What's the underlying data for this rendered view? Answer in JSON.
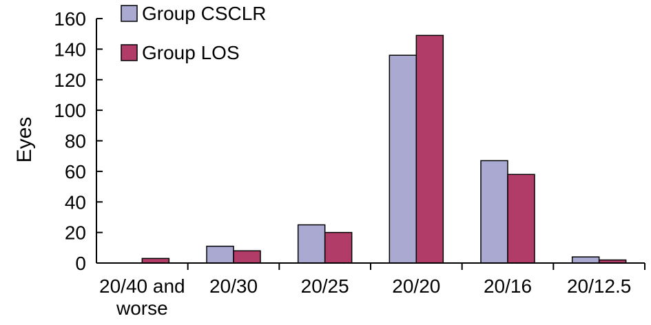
{
  "chart_data": {
    "type": "bar",
    "title": "",
    "xlabel": "",
    "ylabel": "Eyes",
    "ylim": [
      0,
      160
    ],
    "yticks": [
      0,
      20,
      40,
      60,
      80,
      100,
      120,
      140,
      160
    ],
    "grid": false,
    "legend_position": "top-left",
    "categories": [
      [
        "20/40 and",
        "worse"
      ],
      [
        "20/30"
      ],
      [
        "20/25"
      ],
      [
        "20/20"
      ],
      [
        "20/16"
      ],
      [
        "20/12.5"
      ]
    ],
    "series": [
      {
        "name": "Group CSCLR",
        "color": "#aaa9d2",
        "values": [
          0,
          11,
          25,
          136,
          67,
          4
        ]
      },
      {
        "name": "Group LOS",
        "color": "#b23c68",
        "values": [
          3,
          8,
          20,
          149,
          58,
          2
        ]
      }
    ]
  }
}
